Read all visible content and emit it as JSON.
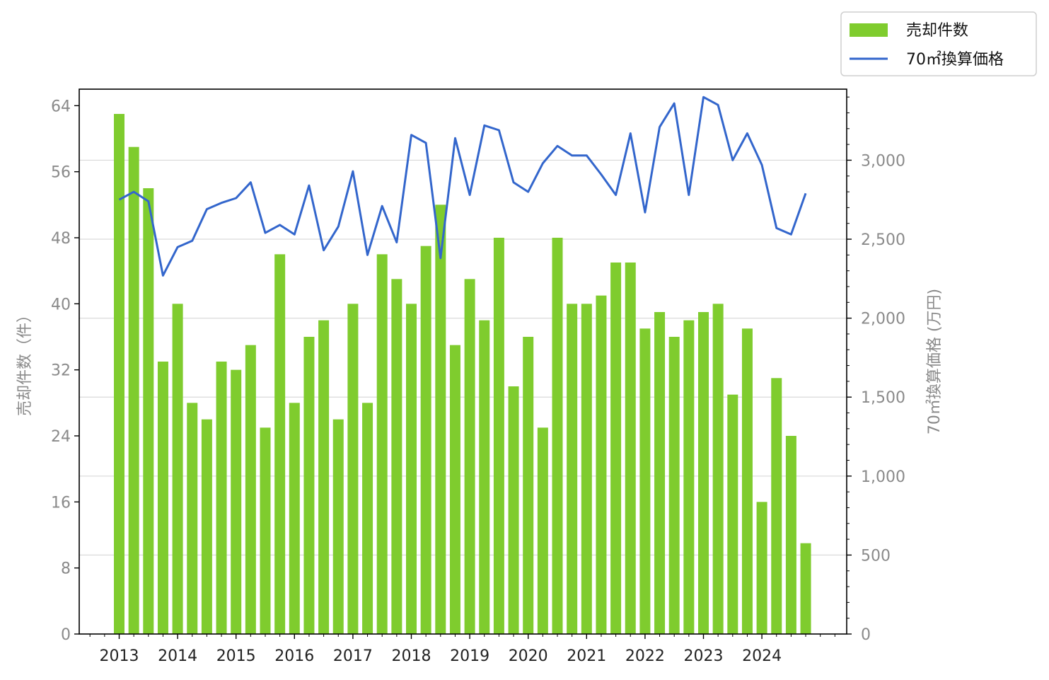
{
  "chart_data": {
    "type": "bar+line",
    "x_tick_labels": [
      "2013",
      "2014",
      "2015",
      "2016",
      "2017",
      "2018",
      "2019",
      "2020",
      "2021",
      "2022",
      "2023",
      "2024"
    ],
    "left_axis": {
      "label": "売却件数（件）",
      "ylim": [
        0,
        66
      ],
      "ticks": [
        0,
        8,
        16,
        24,
        32,
        40,
        48,
        56,
        64
      ]
    },
    "right_axis": {
      "label": "70㎡換算価格 (万円)",
      "ylim": [
        0,
        3450
      ],
      "ticks": [
        0,
        500,
        1000,
        1500,
        2000,
        2500,
        3000
      ],
      "tick_labels": [
        "0",
        "500",
        "1,000",
        "1,500",
        "2,000",
        "2,500",
        "3,000"
      ]
    },
    "grid": "horizontal, right axis",
    "legend_position": "top-right, outside",
    "series": [
      {
        "name": "売却件数",
        "type": "bar",
        "axis": "left",
        "color": "#7fcc2e",
        "values": [
          63,
          59,
          54,
          33,
          40,
          28,
          26,
          33,
          32,
          35,
          25,
          46,
          28,
          36,
          38,
          26,
          40,
          28,
          46,
          43,
          40,
          47,
          52,
          35,
          43,
          38,
          48,
          30,
          36,
          25,
          48,
          40,
          40,
          41,
          45,
          45,
          37,
          39,
          36,
          38,
          39,
          40,
          29,
          37,
          16,
          31,
          24,
          11
        ]
      },
      {
        "name": "70㎡換算価格",
        "type": "line",
        "axis": "right",
        "color": "#3366cc",
        "values": [
          2750,
          2800,
          2740,
          2270,
          2450,
          2490,
          2690,
          2730,
          2760,
          2860,
          2540,
          2590,
          2530,
          2840,
          2430,
          2580,
          2930,
          2400,
          2710,
          2480,
          3160,
          3110,
          2380,
          3140,
          2780,
          3220,
          3190,
          2860,
          2800,
          2980,
          3090,
          3030,
          3030,
          2910,
          2780,
          3170,
          2670,
          3210,
          3360,
          2780,
          3400,
          3350,
          3000,
          3170,
          2970,
          2570,
          2530,
          2790
        ]
      }
    ]
  },
  "colors": {
    "bar": "#7fcc2e",
    "line": "#3366cc",
    "grid": "#d9d9d9",
    "muted_text": "#8a8a8a"
  }
}
